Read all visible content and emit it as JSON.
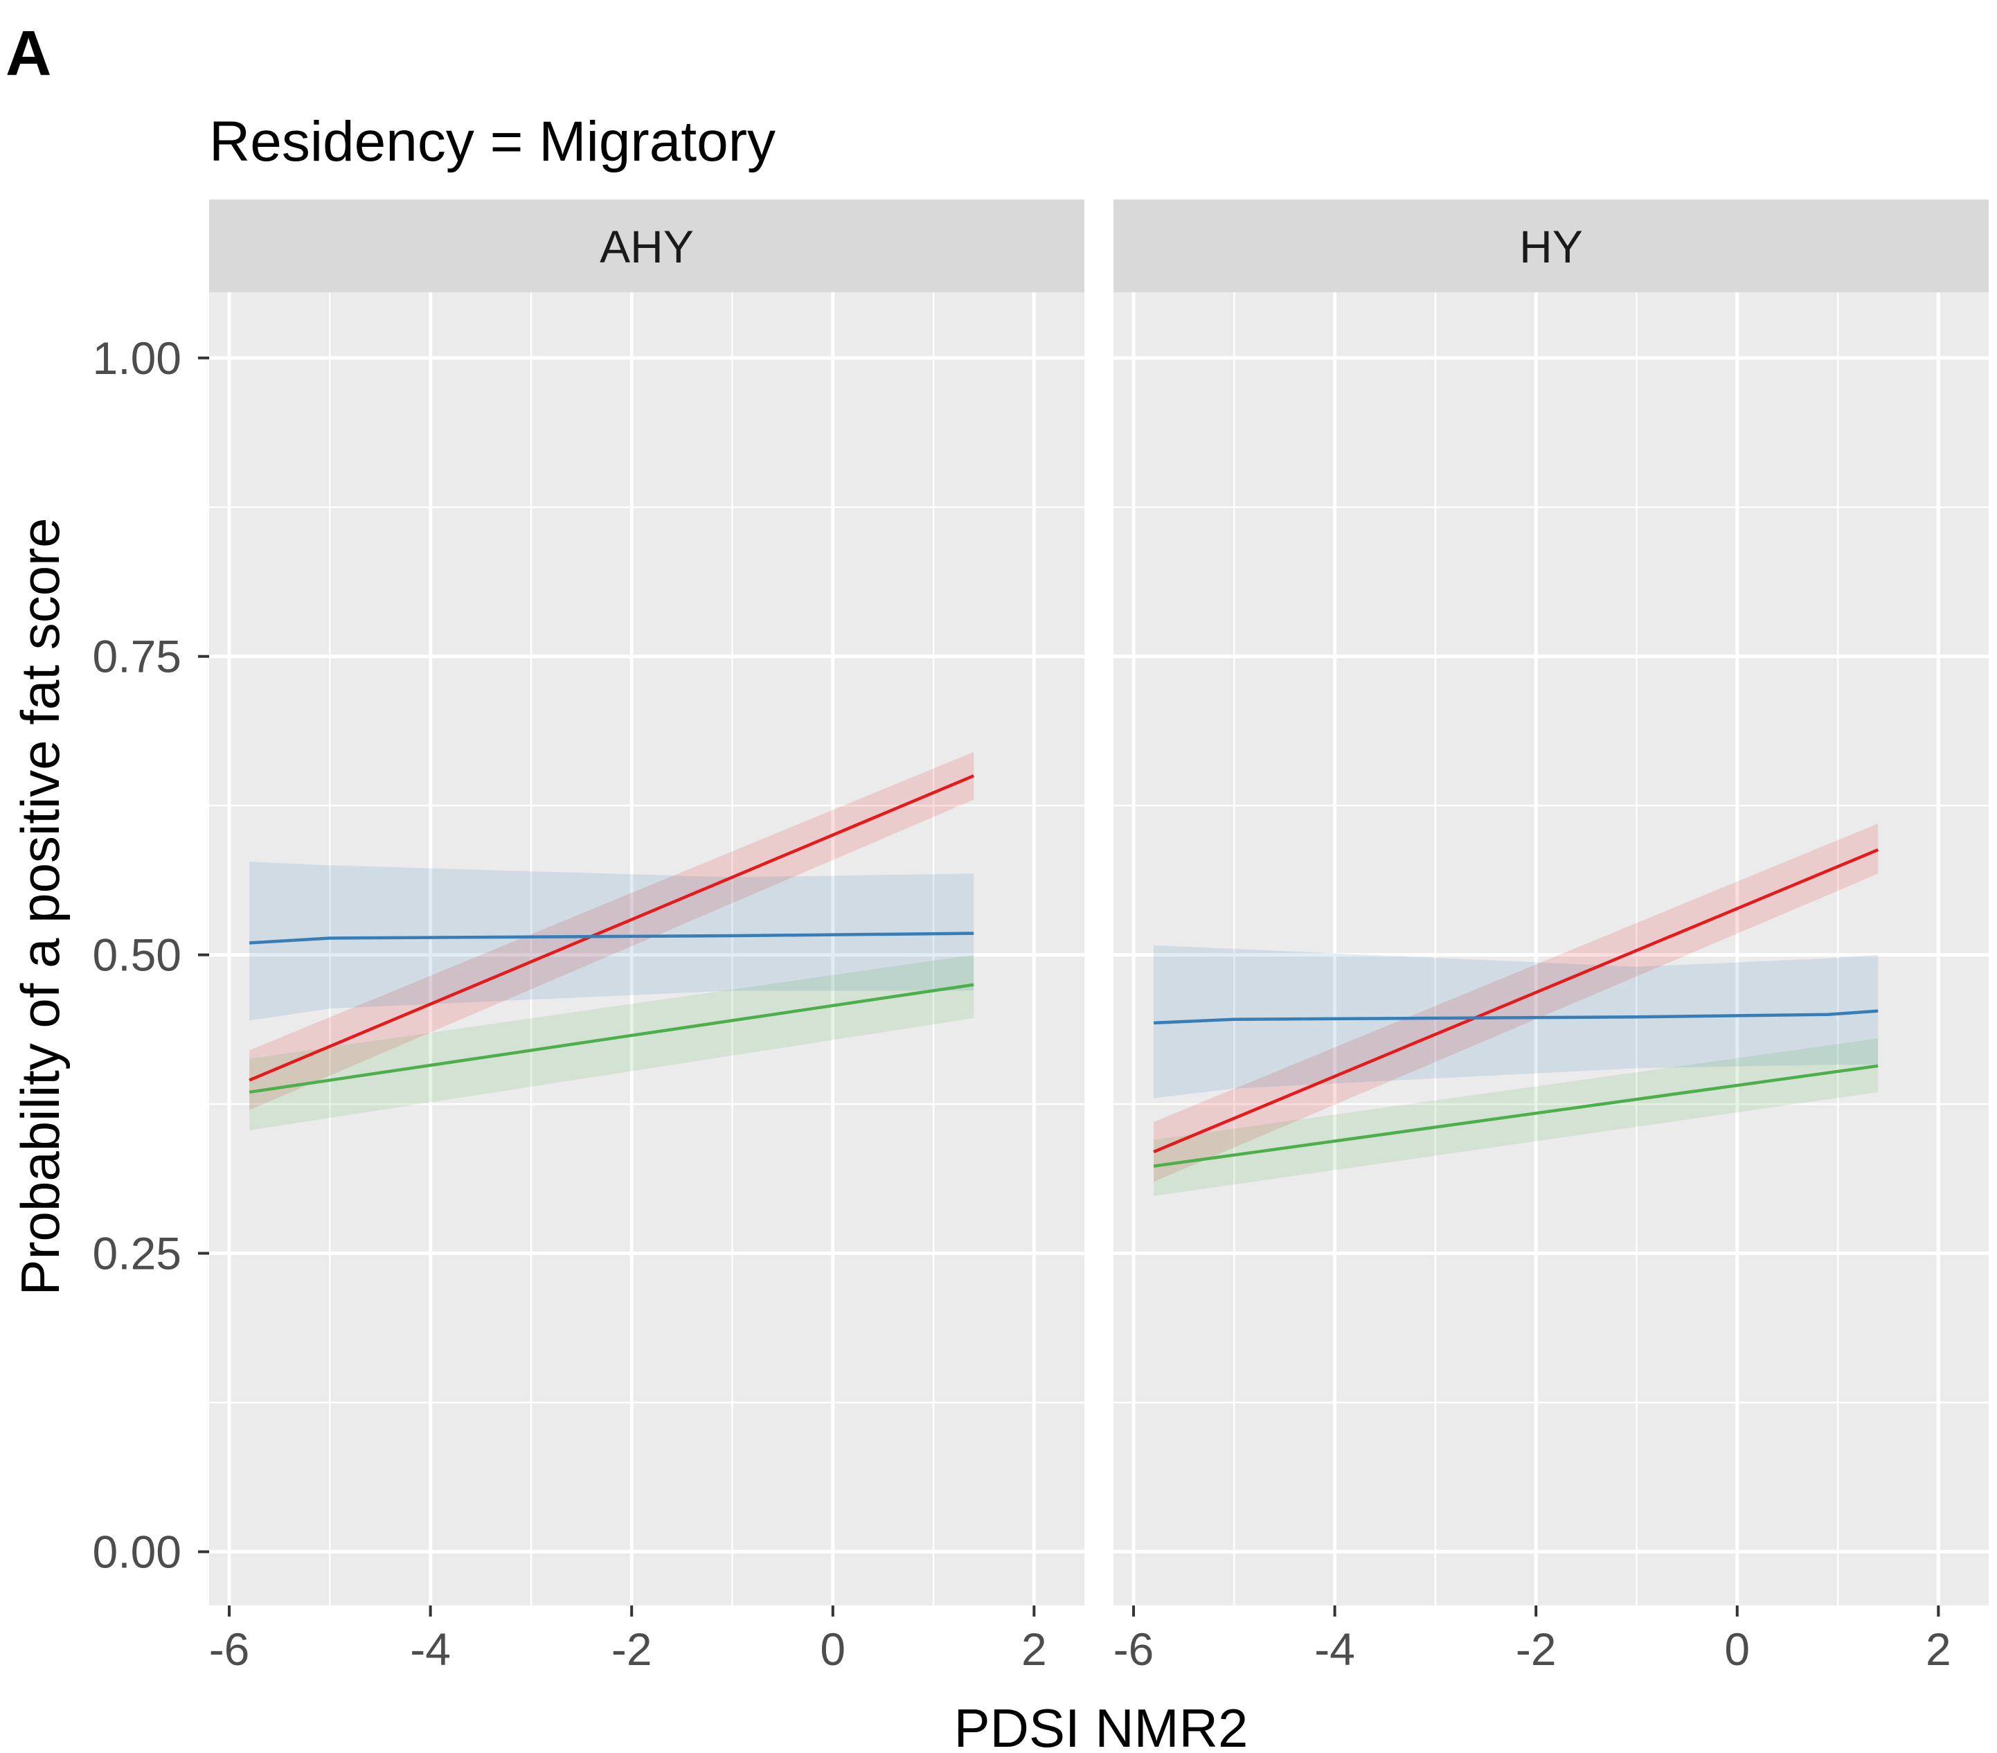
{
  "figure": {
    "panel_letter": "A",
    "title": "Residency = Migratory"
  },
  "chart_data": {
    "type": "line",
    "title": "Residency = Migratory",
    "xlabel": "PDSI NMR2",
    "ylabel": "Probability of a positive fat score",
    "xlim": [
      -6.2,
      2.5
    ],
    "ylim": [
      -0.045,
      1.055
    ],
    "xticks": [
      -6,
      -4,
      -2,
      0,
      2
    ],
    "xtick_labels": [
      "-6",
      "-4",
      "-2",
      "0",
      "2"
    ],
    "yticks": [
      0,
      0.25,
      0.5,
      0.75,
      1
    ],
    "ytick_labels": [
      "0.00",
      "0.25",
      "0.50",
      "0.75",
      "1.00"
    ],
    "grid": true,
    "legend": "none",
    "colors": {
      "red": "#e41a1c",
      "blue": "#377eb8",
      "green": "#4daf4a",
      "panel_bg": "#ebebeb",
      "strip_bg": "#d9d9d9",
      "grid": "#ffffff",
      "text": "#4d4d4d"
    },
    "facets": [
      {
        "label": "AHY",
        "series": [
          {
            "name": "red",
            "color": "#e41a1c",
            "x": [
              -5.8,
              1.4
            ],
            "y": [
              0.395,
              0.65
            ],
            "lower": [
              0.37,
              0.63
            ],
            "upper": [
              0.42,
              0.67
            ]
          },
          {
            "name": "blue",
            "color": "#377eb8",
            "x": [
              -5.8,
              -5.0,
              -1.0,
              1.4
            ],
            "y": [
              0.51,
              0.514,
              0.516,
              0.518
            ],
            "lower": [
              0.445,
              0.455,
              0.47,
              0.47
            ],
            "upper": [
              0.578,
              0.575,
              0.565,
              0.568
            ]
          },
          {
            "name": "green",
            "color": "#4daf4a",
            "x": [
              -5.8,
              1.4
            ],
            "y": [
              0.385,
              0.475
            ],
            "lower": [
              0.353,
              0.447
            ],
            "upper": [
              0.413,
              0.5
            ]
          }
        ]
      },
      {
        "label": "HY",
        "series": [
          {
            "name": "red",
            "color": "#e41a1c",
            "x": [
              -5.8,
              1.4
            ],
            "y": [
              0.335,
              0.588
            ],
            "lower": [
              0.31,
              0.568
            ],
            "upper": [
              0.36,
              0.61
            ]
          },
          {
            "name": "blue",
            "color": "#377eb8",
            "x": [
              -5.8,
              -5.0,
              -1.0,
              0.9,
              1.4
            ],
            "y": [
              0.443,
              0.446,
              0.448,
              0.45,
              0.453
            ],
            "lower": [
              0.38,
              0.388,
              0.405,
              0.408,
              0.408
            ],
            "upper": [
              0.508,
              0.505,
              0.49,
              0.497,
              0.5
            ]
          },
          {
            "name": "green",
            "color": "#4daf4a",
            "x": [
              -5.8,
              1.4
            ],
            "y": [
              0.323,
              0.407
            ],
            "lower": [
              0.298,
              0.385
            ],
            "upper": [
              0.345,
              0.43
            ]
          }
        ]
      }
    ]
  }
}
